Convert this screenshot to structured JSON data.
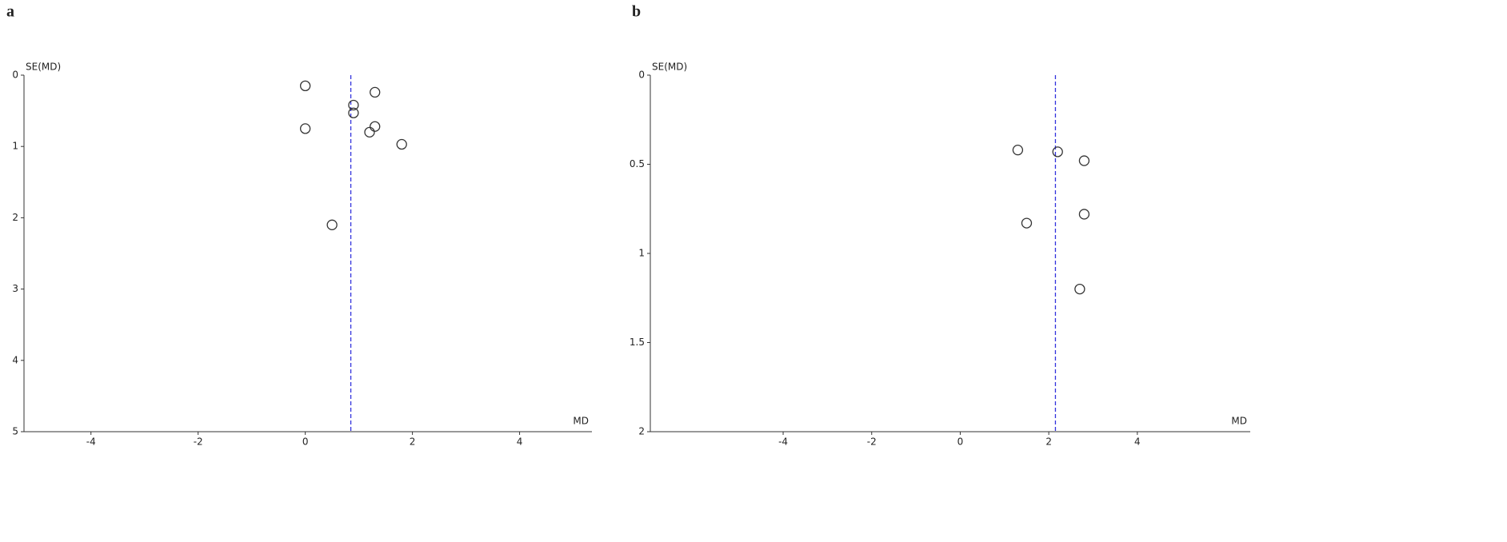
{
  "chart_data": [
    {
      "type": "scatter",
      "panel_label": "a",
      "x_label": "MD",
      "y_label": "SE(MD)",
      "x": [
        0,
        1.3,
        0.9,
        0.9,
        0,
        1.3,
        1.2,
        1.8,
        0.5
      ],
      "values": [
        0.15,
        0.24,
        0.42,
        0.53,
        0.75,
        0.72,
        0.8,
        0.97,
        2.1
      ],
      "pooled_estimate": 0.85,
      "xlim": [
        -5.25,
        5.35
      ],
      "xticks": [
        -4,
        -2,
        0,
        2,
        4
      ],
      "ylim": [
        5,
        0
      ],
      "yticks": [
        0,
        1,
        2,
        3,
        4,
        5
      ],
      "color": "#333333",
      "reference_color": "#3333dd"
    },
    {
      "type": "scatter",
      "panel_label": "b",
      "x_label": "MD",
      "y_label": "SE(MD)",
      "x": [
        1.3,
        2.2,
        2.8,
        1.5,
        2.8,
        2.7
      ],
      "values": [
        0.42,
        0.43,
        0.48,
        0.83,
        0.78,
        1.2
      ],
      "pooled_estimate": 2.15,
      "xlim": [
        -7,
        6.55
      ],
      "xticks": [
        -4,
        -2,
        0,
        2,
        4
      ],
      "ylim": [
        2,
        0
      ],
      "yticks": [
        0,
        0.5,
        1,
        1.5,
        2
      ],
      "color": "#333333",
      "reference_color": "#3333dd"
    }
  ]
}
